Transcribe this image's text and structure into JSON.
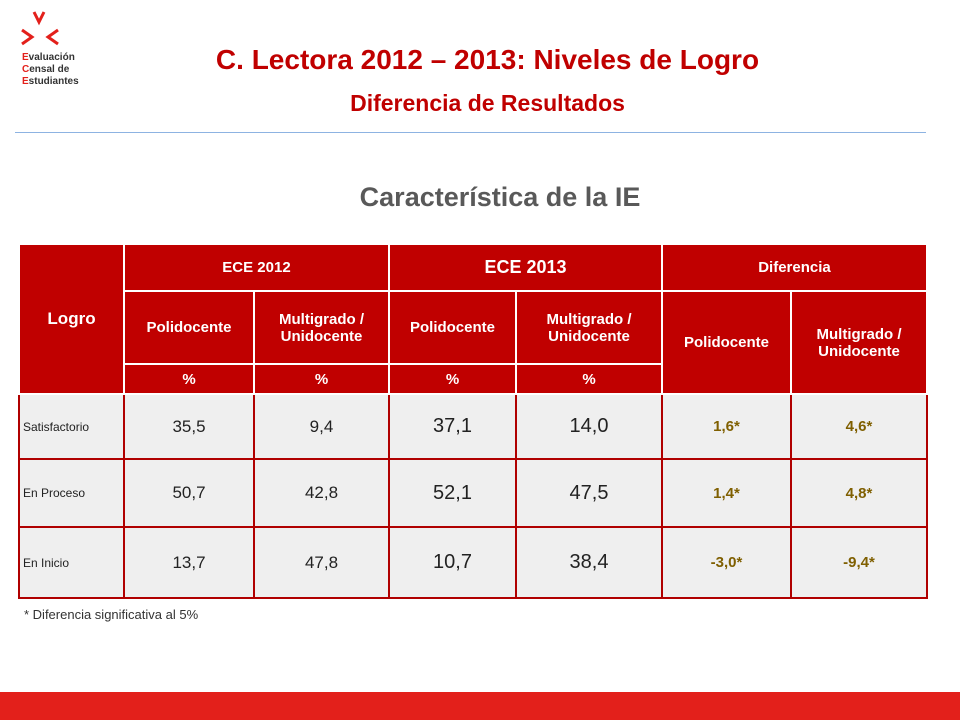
{
  "logo": {
    "lines": [
      "Evaluación",
      "Censal de",
      "Estudiantes"
    ]
  },
  "header": {
    "title": "C. Lectora 2012 – 2013: Niveles de Logro",
    "subtitle": "Diferencia de Resultados"
  },
  "section_title": "Característica de la IE",
  "table": {
    "corner": "Logro",
    "groups": [
      "ECE 2012",
      "ECE 2013",
      "Diferencia"
    ],
    "subheaders": [
      "Polidocente",
      "Multigrado / Unidocente",
      "Polidocente",
      "Multigrado / Unidocente",
      "Polidocente",
      "Multigrado / Unidocente"
    ],
    "units": [
      "%",
      "%",
      "%",
      "%"
    ],
    "rows": [
      [
        "Satisfactorio",
        "35,5",
        "9,4",
        "37,1",
        "14,0",
        "1,6*",
        "4,6*"
      ],
      [
        "En Proceso",
        "50,7",
        "42,8",
        "52,1",
        "47,5",
        "1,4*",
        "4,8*"
      ],
      [
        "En Inicio",
        "13,7",
        "47,8",
        "10,7",
        "38,4",
        "-3,0*",
        "-9,4*"
      ]
    ]
  },
  "footnote": "* Diferencia significativa al 5%"
}
